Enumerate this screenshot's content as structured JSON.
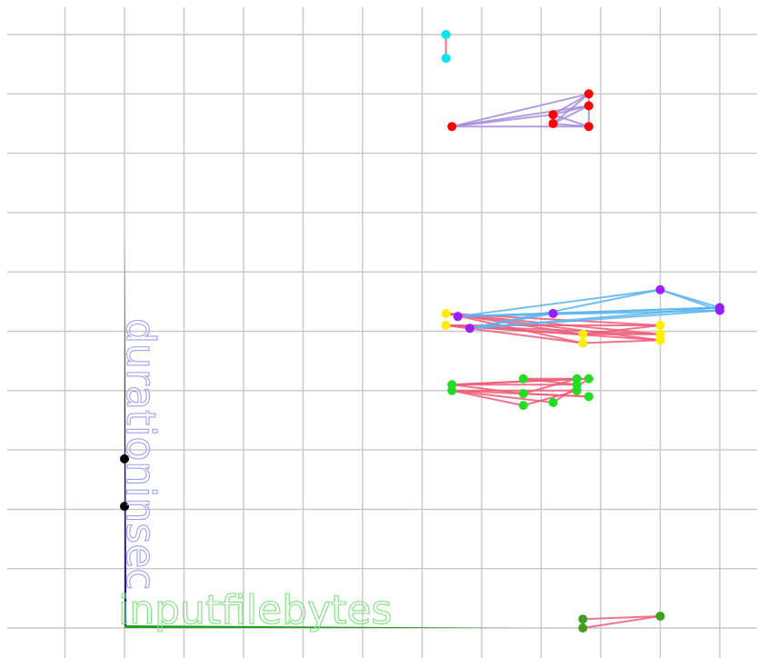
{
  "chart_data": {
    "type": "scatter",
    "title": "",
    "xlabel": "inputfilebytes",
    "ylabel": "durationinsec",
    "grid": true,
    "colors": {
      "x_axis": "#1ea01e",
      "y_axis": "#1414b4",
      "x_label": "#7de07d",
      "y_label": "#a0a0f5",
      "link_red": "#ef5a78",
      "link_blue": "#5ab4f0",
      "link_purple": "#a68cd8"
    },
    "clusters": [
      {
        "name": "cyan",
        "color": "#00e5ee",
        "link": "#ef5a78",
        "points": [
          [
            5.4,
            10.0
          ],
          [
            5.4,
            9.6
          ]
        ],
        "edges": [
          [
            0,
            1
          ]
        ]
      },
      {
        "name": "red",
        "color": "#ff0000",
        "link": "#a68cd8",
        "points": [
          [
            5.5,
            8.45
          ],
          [
            7.2,
            8.65
          ],
          [
            7.2,
            8.5
          ],
          [
            7.8,
            9.0
          ],
          [
            7.8,
            8.8
          ],
          [
            7.8,
            8.45
          ]
        ],
        "edges": [
          [
            0,
            3
          ],
          [
            0,
            4
          ],
          [
            0,
            5
          ],
          [
            0,
            1
          ],
          [
            1,
            3
          ],
          [
            1,
            4
          ],
          [
            2,
            3
          ],
          [
            2,
            5
          ],
          [
            3,
            4
          ],
          [
            4,
            5
          ],
          [
            1,
            5
          ],
          [
            2,
            4
          ]
        ]
      },
      {
        "name": "yellow",
        "color": "#ffee00",
        "link": "#ef5a78",
        "points": [
          [
            5.4,
            5.3
          ],
          [
            5.4,
            5.1
          ],
          [
            7.7,
            4.95
          ],
          [
            7.7,
            4.8
          ],
          [
            9.0,
            5.1
          ],
          [
            9.0,
            4.95
          ],
          [
            9.0,
            4.85
          ]
        ],
        "edges": [
          [
            0,
            2
          ],
          [
            0,
            3
          ],
          [
            0,
            4
          ],
          [
            0,
            5
          ],
          [
            0,
            6
          ],
          [
            1,
            2
          ],
          [
            1,
            3
          ],
          [
            1,
            4
          ],
          [
            1,
            5
          ],
          [
            1,
            6
          ],
          [
            2,
            4
          ],
          [
            3,
            6
          ],
          [
            2,
            5
          ]
        ]
      },
      {
        "name": "purple",
        "color": "#9b1eff",
        "link": "#5ab4f0",
        "points": [
          [
            5.6,
            5.25
          ],
          [
            5.8,
            5.05
          ],
          [
            7.2,
            5.3
          ],
          [
            9.0,
            5.7
          ],
          [
            10.0,
            5.4
          ],
          [
            10.0,
            5.35
          ]
        ],
        "edges": [
          [
            0,
            3
          ],
          [
            0,
            4
          ],
          [
            0,
            5
          ],
          [
            0,
            2
          ],
          [
            1,
            3
          ],
          [
            1,
            4
          ],
          [
            1,
            5
          ],
          [
            2,
            4
          ],
          [
            3,
            4
          ],
          [
            3,
            5
          ],
          [
            1,
            2
          ]
        ]
      },
      {
        "name": "green",
        "color": "#22dd22",
        "link": "#ef5a78",
        "points": [
          [
            5.5,
            4.1
          ],
          [
            5.5,
            4.0
          ],
          [
            6.7,
            4.2
          ],
          [
            6.7,
            3.95
          ],
          [
            6.7,
            3.75
          ],
          [
            7.2,
            3.8
          ],
          [
            7.6,
            4.2
          ],
          [
            7.6,
            4.1
          ],
          [
            7.6,
            4.0
          ],
          [
            7.8,
            4.2
          ],
          [
            7.8,
            3.9
          ]
        ],
        "edges": [
          [
            0,
            6
          ],
          [
            0,
            7
          ],
          [
            0,
            9
          ],
          [
            1,
            8
          ],
          [
            1,
            10
          ],
          [
            1,
            5
          ],
          [
            0,
            3
          ],
          [
            1,
            4
          ],
          [
            2,
            9
          ],
          [
            3,
            10
          ],
          [
            4,
            8
          ],
          [
            5,
            9
          ],
          [
            2,
            7
          ],
          [
            3,
            6
          ]
        ]
      },
      {
        "name": "darkgreen",
        "color": "#3f9f1f",
        "link": "#ef5a78",
        "points": [
          [
            7.7,
            0.15
          ],
          [
            7.7,
            0.0
          ],
          [
            9.0,
            0.2
          ]
        ],
        "edges": [
          [
            0,
            2
          ],
          [
            1,
            2
          ],
          [
            0,
            1
          ]
        ]
      },
      {
        "name": "black",
        "color": "#000000",
        "link": "#ef5a78",
        "points": [
          [
            0.0,
            2.85
          ],
          [
            0.0,
            2.05
          ]
        ],
        "edges": []
      }
    ]
  }
}
